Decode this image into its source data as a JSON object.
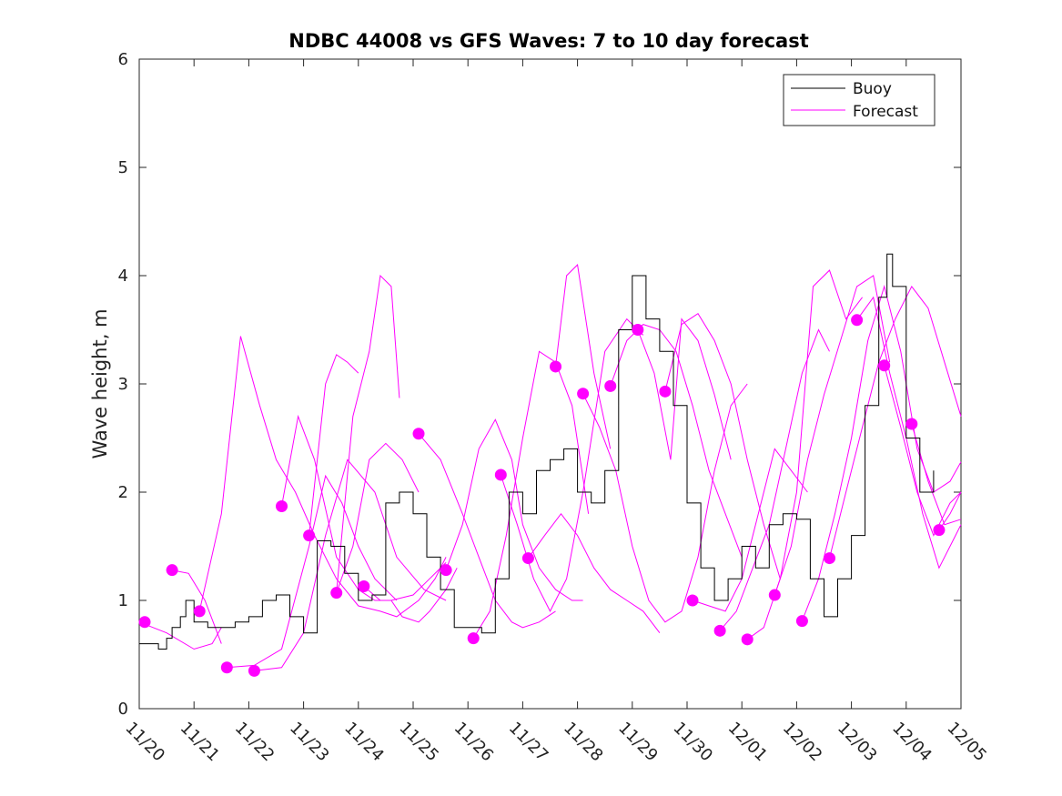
{
  "chart_data": {
    "type": "line",
    "title": "NDBC 44008 vs GFS Waves: 7 to 10 day forecast",
    "xlabel": "",
    "ylabel": "Wave height, m",
    "xlim": [
      0,
      15
    ],
    "ylim": [
      0,
      6
    ],
    "x_ticks": [
      "11/20",
      "11/21",
      "11/22",
      "11/23",
      "11/24",
      "11/25",
      "11/26",
      "11/27",
      "11/28",
      "11/29",
      "11/30",
      "12/01",
      "12/02",
      "12/03",
      "12/04",
      "12/05"
    ],
    "y_ticks": [
      "0",
      "1",
      "2",
      "3",
      "4",
      "5",
      "6"
    ],
    "legend": {
      "location": "top-right",
      "entries": [
        "Buoy",
        "Forecast"
      ]
    },
    "colors": {
      "buoy": "#000000",
      "forecast": "#ff00ff"
    },
    "units_note": "x values are days since 11/20 00:00",
    "buoy": {
      "name": "Buoy",
      "x": [
        0.0,
        0.25,
        0.35,
        0.5,
        0.6,
        0.75,
        0.85,
        1.0,
        1.25,
        1.5,
        1.75,
        2.0,
        2.25,
        2.5,
        2.75,
        3.0,
        3.25,
        3.5,
        3.75,
        4.0,
        4.25,
        4.5,
        4.75,
        5.0,
        5.25,
        5.5,
        5.75,
        6.0,
        6.25,
        6.5,
        6.75,
        7.0,
        7.25,
        7.5,
        7.75,
        8.0,
        8.25,
        8.5,
        8.75,
        9.0,
        9.25,
        9.5,
        9.75,
        10.0,
        10.25,
        10.5,
        10.75,
        11.0,
        11.25,
        11.5,
        11.75,
        12.0,
        12.25,
        12.5,
        12.75,
        13.0,
        13.25,
        13.5,
        13.65,
        13.75,
        14.0,
        14.25,
        14.5
      ],
      "y": [
        0.6,
        0.6,
        0.55,
        0.65,
        0.75,
        0.85,
        1.0,
        0.8,
        0.75,
        0.75,
        0.8,
        0.85,
        1.0,
        1.05,
        0.85,
        0.7,
        1.55,
        1.5,
        1.25,
        1.0,
        1.05,
        1.9,
        2.0,
        1.8,
        1.4,
        1.1,
        0.75,
        0.75,
        0.7,
        1.2,
        2.0,
        1.8,
        2.2,
        2.3,
        2.4,
        2.0,
        1.9,
        2.2,
        3.5,
        4.0,
        3.6,
        3.3,
        2.8,
        1.9,
        1.3,
        1.0,
        1.2,
        1.5,
        1.3,
        1.7,
        1.8,
        1.75,
        1.2,
        0.85,
        1.2,
        1.6,
        2.8,
        3.8,
        4.2,
        3.9,
        2.5,
        2.0,
        2.2
      ]
    },
    "forecast_runs": [
      {
        "x": [
          0.0,
          0.5,
          1.0,
          1.33,
          1.5
        ],
        "y": [
          0.8,
          0.7,
          0.55,
          0.6,
          0.75
        ]
      },
      {
        "x": [
          0.6,
          0.9,
          1.2,
          1.5
        ],
        "y": [
          1.28,
          1.25,
          1.0,
          0.6
        ]
      },
      {
        "x": [
          1.1,
          1.5,
          1.85,
          2.2,
          2.5,
          2.85,
          3.2,
          3.6,
          4.0,
          4.4,
          4.7,
          5.1,
          5.4,
          5.6
        ],
        "y": [
          0.9,
          1.8,
          3.44,
          2.8,
          2.3,
          2.0,
          1.6,
          1.2,
          0.95,
          0.9,
          0.85,
          1.0,
          1.2,
          1.4
        ]
      },
      {
        "x": [
          1.6,
          2.1,
          2.6,
          3.1,
          3.4,
          3.7,
          4.0,
          4.3,
          4.7
        ],
        "y": [
          0.38,
          0.4,
          0.55,
          1.5,
          2.15,
          1.9,
          1.5,
          1.2,
          1.0
        ]
      },
      {
        "x": [
          2.1,
          2.6,
          3.0,
          3.4,
          3.8,
          4.3,
          4.7,
          5.2,
          5.6
        ],
        "y": [
          0.35,
          0.38,
          0.7,
          1.6,
          2.3,
          2.0,
          1.4,
          1.1,
          1.0
        ]
      },
      {
        "x": [
          2.6,
          2.9,
          3.2,
          3.6,
          4.0,
          4.3,
          4.6,
          5.0,
          5.3,
          5.6
        ],
        "y": [
          1.87,
          2.7,
          2.3,
          1.4,
          1.1,
          1.0,
          1.0,
          1.05,
          1.2,
          1.35
        ]
      },
      {
        "x": [
          3.1,
          3.4,
          3.6,
          3.8,
          4.0
        ],
        "y": [
          1.6,
          3.0,
          3.27,
          3.2,
          3.1
        ]
      },
      {
        "x": [
          3.6,
          3.9,
          4.2,
          4.5,
          4.8,
          5.1
        ],
        "y": [
          1.07,
          1.5,
          2.3,
          2.45,
          2.3,
          2.0
        ]
      },
      {
        "x": [
          4.1,
          4.4,
          4.6,
          4.8,
          5.1,
          5.3,
          5.6,
          5.8
        ],
        "y": [
          1.13,
          1.0,
          1.0,
          0.85,
          0.8,
          0.9,
          1.1,
          1.3
        ]
      },
      {
        "x": [
          3.6,
          3.9,
          4.2,
          4.4,
          4.6,
          4.75
        ],
        "y": [
          1.07,
          2.7,
          3.3,
          4.0,
          3.9,
          2.87
        ]
      },
      {
        "x": [
          5.1,
          5.5,
          5.9,
          6.2,
          6.5,
          6.8,
          7.0,
          7.3,
          7.6
        ],
        "y": [
          2.54,
          2.3,
          1.8,
          1.4,
          1.0,
          0.8,
          0.75,
          0.8,
          0.9
        ]
      },
      {
        "x": [
          5.6,
          5.9,
          6.2,
          6.5,
          6.8,
          7.0,
          7.3,
          7.6,
          7.9,
          8.1
        ],
        "y": [
          1.28,
          1.7,
          2.4,
          2.67,
          2.3,
          1.7,
          1.3,
          1.1,
          1.0,
          1.0
        ]
      },
      {
        "x": [
          6.1,
          6.4,
          6.7,
          7.0,
          7.3,
          7.6,
          7.9,
          8.2
        ],
        "y": [
          0.65,
          0.9,
          1.6,
          2.5,
          3.3,
          3.2,
          2.8,
          1.8
        ]
      },
      {
        "x": [
          6.6,
          6.9,
          7.2,
          7.5,
          7.8,
          8.1,
          8.5,
          8.9,
          9.2
        ],
        "y": [
          2.16,
          1.7,
          1.2,
          0.9,
          1.2,
          2.0,
          3.3,
          3.6,
          3.45
        ]
      },
      {
        "x": [
          7.1,
          7.4,
          7.7,
          8.0,
          8.3,
          8.6,
          8.9,
          9.2,
          9.5
        ],
        "y": [
          1.39,
          1.6,
          1.8,
          1.6,
          1.3,
          1.1,
          1.0,
          0.9,
          0.7
        ]
      },
      {
        "x": [
          7.6,
          7.8,
          8.0,
          8.3,
          8.6
        ],
        "y": [
          3.16,
          4.0,
          4.1,
          3.1,
          2.4
        ]
      },
      {
        "x": [
          8.1,
          8.4,
          8.7,
          9.0,
          9.3,
          9.6,
          9.9,
          10.2,
          10.5,
          10.8,
          11.1
        ],
        "y": [
          2.91,
          2.6,
          2.2,
          1.5,
          1.0,
          0.8,
          0.9,
          1.4,
          2.2,
          2.8,
          3.0
        ]
      },
      {
        "x": [
          8.6,
          8.9,
          9.2,
          9.5,
          9.8,
          10.1,
          10.4,
          10.7,
          11.0
        ],
        "y": [
          2.98,
          3.4,
          3.55,
          3.5,
          3.3,
          2.8,
          2.2,
          1.8,
          1.4
        ]
      },
      {
        "x": [
          9.1,
          9.4,
          9.7,
          9.9,
          10.2,
          10.5,
          10.8
        ],
        "y": [
          3.5,
          3.1,
          2.3,
          3.6,
          3.4,
          2.9,
          2.3
        ]
      },
      {
        "x": [
          9.6,
          9.9,
          10.2,
          10.5,
          10.8,
          11.1,
          11.4,
          11.7
        ],
        "y": [
          2.93,
          3.55,
          3.65,
          3.4,
          3.0,
          2.3,
          1.7,
          1.2
        ]
      },
      {
        "x": [
          10.1,
          10.4,
          10.7,
          11.0,
          11.3,
          11.6,
          11.9,
          12.2
        ],
        "y": [
          1.0,
          0.95,
          0.9,
          1.2,
          1.8,
          2.4,
          2.2,
          2.0
        ]
      },
      {
        "x": [
          10.6,
          10.9,
          11.2,
          11.5,
          11.8,
          12.1,
          12.4,
          12.6
        ],
        "y": [
          0.72,
          0.9,
          1.3,
          1.7,
          2.4,
          3.1,
          3.5,
          3.3
        ]
      },
      {
        "x": [
          11.1,
          11.4,
          11.7,
          12.0,
          12.3,
          12.6,
          12.9,
          13.2
        ],
        "y": [
          0.64,
          0.75,
          1.2,
          2.0,
          3.9,
          4.05,
          3.6,
          3.8
        ]
      },
      {
        "x": [
          11.6,
          11.9,
          12.2,
          12.5,
          12.8,
          13.1,
          13.4,
          13.7
        ],
        "y": [
          1.05,
          1.5,
          2.3,
          2.9,
          3.4,
          3.9,
          4.0,
          3.2
        ]
      },
      {
        "x": [
          12.1,
          12.4,
          12.7,
          13.0,
          13.3,
          13.6,
          13.9,
          14.2,
          14.5,
          14.8,
          15.0
        ],
        "y": [
          0.81,
          1.2,
          1.8,
          2.5,
          3.4,
          3.9,
          3.3,
          2.4,
          2.0,
          2.1,
          2.28
        ]
      },
      {
        "x": [
          12.6,
          12.9,
          13.2,
          13.5,
          13.8,
          14.1,
          14.4,
          14.7,
          15.0
        ],
        "y": [
          1.39,
          2.0,
          2.6,
          3.2,
          3.6,
          3.9,
          3.7,
          3.2,
          2.7
        ]
      },
      {
        "x": [
          13.1,
          13.4,
          13.7,
          14.0,
          14.3,
          14.6,
          14.9,
          15.0
        ],
        "y": [
          3.59,
          3.8,
          3.1,
          2.5,
          1.8,
          1.3,
          1.6,
          1.7
        ]
      },
      {
        "x": [
          13.6,
          13.9,
          14.2,
          14.5,
          14.8,
          15.0
        ],
        "y": [
          3.17,
          2.6,
          2.0,
          1.6,
          1.9,
          2.0
        ]
      },
      {
        "x": [
          14.1,
          14.4,
          14.7,
          15.0
        ],
        "y": [
          2.63,
          2.1,
          1.7,
          1.75
        ]
      },
      {
        "x": [
          14.6,
          14.8,
          15.0
        ],
        "y": [
          1.65,
          1.8,
          2.0
        ]
      }
    ],
    "forecast_points": {
      "x": [
        0.1,
        0.6,
        1.1,
        1.6,
        2.1,
        2.6,
        3.1,
        3.6,
        4.1,
        5.1,
        5.6,
        6.1,
        6.6,
        7.1,
        7.6,
        8.1,
        8.6,
        9.1,
        9.6,
        10.1,
        10.6,
        11.1,
        11.6,
        12.1,
        12.6,
        13.1,
        13.6,
        14.1,
        14.6
      ],
      "y": [
        0.8,
        1.28,
        0.9,
        0.38,
        0.35,
        1.87,
        1.6,
        1.07,
        1.13,
        2.54,
        1.28,
        0.65,
        2.16,
        1.39,
        3.16,
        2.91,
        2.98,
        3.5,
        2.93,
        1.0,
        0.72,
        0.64,
        1.05,
        0.81,
        1.39,
        3.59,
        3.17,
        2.63,
        1.65
      ]
    }
  }
}
